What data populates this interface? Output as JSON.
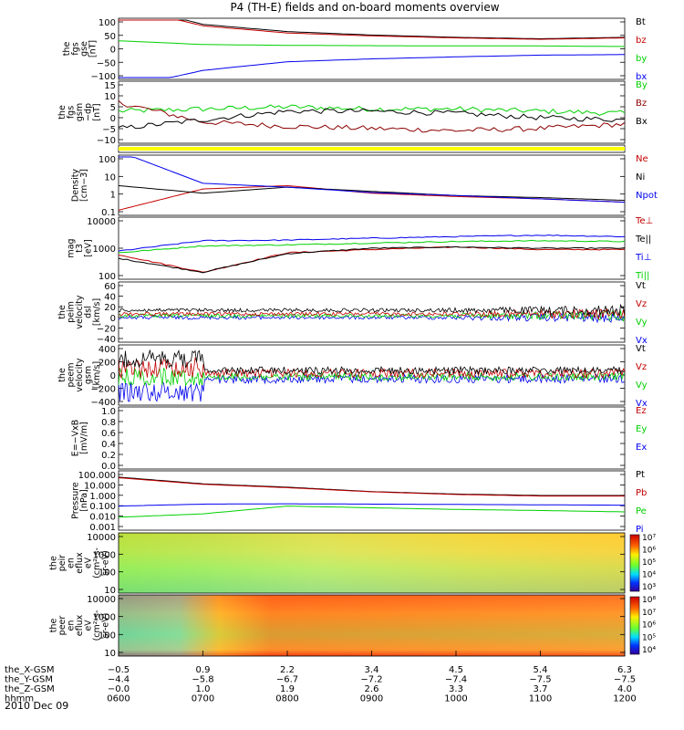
{
  "title": "P4 (TH-E) fields and on-board moments overview",
  "colors": {
    "black": "#000000",
    "red": "#c40000",
    "darkred": "#8b0000",
    "green": "#00d000",
    "blue": "#0000ee",
    "yellow": "#ffff00"
  },
  "panels": [
    {
      "id": "fgs-gse",
      "ylabel": [
        "the",
        "fgs",
        "gse",
        "[nT]"
      ],
      "ticks": [
        "100",
        "50",
        "0",
        "−50",
        "−100"
      ],
      "legend": [
        {
          "text": "Bt",
          "color": "black"
        },
        {
          "text": "bz",
          "color": "red"
        },
        {
          "text": "by",
          "color": "green"
        },
        {
          "text": "bx",
          "color": "blue"
        }
      ]
    },
    {
      "id": "fgs-gsm",
      "ylabel": [
        "the",
        "fgs",
        "gsm",
        "−dp",
        "[nT]"
      ],
      "ticks": [
        "15",
        "10",
        "5",
        "0",
        "−5",
        "−10"
      ],
      "legend": [
        {
          "text": "By",
          "color": "green"
        },
        {
          "text": "Bz",
          "color": "darkred"
        },
        {
          "text": "Bx",
          "color": "black"
        }
      ]
    },
    {
      "id": "flag",
      "ylabel": [],
      "ticks": [],
      "legend": []
    },
    {
      "id": "density",
      "ylabel": [
        "Density",
        "[cm−3]"
      ],
      "ticks": [
        "100",
        "10",
        "1",
        "0.1"
      ],
      "legend": [
        {
          "text": "Ne",
          "color": "red"
        },
        {
          "text": "Ni",
          "color": "black"
        },
        {
          "text": "Npot",
          "color": "blue"
        }
      ]
    },
    {
      "id": "temp",
      "ylabel": [
        "mag",
        "t3",
        "[eV]"
      ],
      "ticks": [
        "10000",
        "1000",
        "100"
      ],
      "legend": [
        {
          "text": "Te⊥",
          "color": "red"
        },
        {
          "text": "Te||",
          "color": "black"
        },
        {
          "text": "Ti⊥",
          "color": "blue"
        },
        {
          "text": "Ti||",
          "color": "green"
        }
      ]
    },
    {
      "id": "peim-vel",
      "ylabel": [
        "the",
        "peim",
        "velocity",
        "dsl",
        "[km/s]"
      ],
      "ticks": [
        "60",
        "40",
        "20",
        "0",
        "−20",
        "−40"
      ],
      "legend": [
        {
          "text": "Vt",
          "color": "black"
        },
        {
          "text": "Vz",
          "color": "red"
        },
        {
          "text": "Vy",
          "color": "green"
        },
        {
          "text": "Vx",
          "color": "blue"
        }
      ]
    },
    {
      "id": "peem-vel",
      "ylabel": [
        "the",
        "peem",
        "velocity",
        "gsm",
        "[km/s]"
      ],
      "ticks": [
        "400",
        "200",
        "0",
        "−200",
        "−400"
      ],
      "legend": [
        {
          "text": "Vt",
          "color": "black"
        },
        {
          "text": "Vz",
          "color": "red"
        },
        {
          "text": "Vy",
          "color": "green"
        },
        {
          "text": "Vx",
          "color": "blue"
        }
      ]
    },
    {
      "id": "efield",
      "ylabel": [
        "E=−VxB",
        "[mV/m]"
      ],
      "ticks": [
        "1.0",
        "0.8",
        "0.6",
        "0.4",
        "0.2",
        "0.0"
      ],
      "legend": [
        {
          "text": "Ez",
          "color": "red"
        },
        {
          "text": "Ey",
          "color": "green"
        },
        {
          "text": "Ex",
          "color": "blue"
        }
      ]
    },
    {
      "id": "pressure",
      "ylabel": [
        "Pressure",
        "[nPa]"
      ],
      "ticks": [
        "100.000",
        "10.000",
        "1.000",
        "0.100",
        "0.010",
        "0.001"
      ],
      "legend": [
        {
          "text": "Pt",
          "color": "black"
        },
        {
          "text": "Pb",
          "color": "red"
        },
        {
          "text": "Pe",
          "color": "green"
        },
        {
          "text": "Pi",
          "color": "blue"
        }
      ]
    },
    {
      "id": "peir-spec",
      "ylabel": [
        "the",
        "peir",
        "en",
        "eflux",
        "eV",
        "(cm²-s-",
        "sr-eV)"
      ],
      "ticks": [
        "10000",
        "1000",
        "100",
        "10"
      ],
      "cbticks": [
        "10⁷",
        "10⁶",
        "10⁵",
        "10⁴",
        "10³"
      ],
      "legend": []
    },
    {
      "id": "peer-spec",
      "ylabel": [
        "the",
        "peer",
        "en",
        "eflux",
        "eV",
        "(cm²-s-",
        "sr-eV)"
      ],
      "ticks": [
        "10000",
        "1000",
        "100",
        "10"
      ],
      "cbticks": [
        "10⁸",
        "10⁷",
        "10⁶",
        "10⁵",
        "10⁴"
      ],
      "legend": []
    }
  ],
  "xaxis": {
    "rows": [
      {
        "label": "the_X-GSM",
        "values": [
          "−0.5",
          "0.9",
          "2.2",
          "3.4",
          "4.5",
          "5.4",
          "6.3"
        ]
      },
      {
        "label": "the_Y-GSM",
        "values": [
          "−4.4",
          "−5.8",
          "−6.7",
          "−7.2",
          "−7.4",
          "−7.5",
          "−7.5"
        ]
      },
      {
        "label": "the_Z-GSM",
        "values": [
          "−0.0",
          "1.0",
          "1.9",
          "2.6",
          "3.3",
          "3.7",
          "4.0"
        ]
      },
      {
        "label": "hhmm",
        "values": [
          "0600",
          "0700",
          "0800",
          "0900",
          "1000",
          "1100",
          "1200"
        ]
      }
    ],
    "date": "2010 Dec 09"
  },
  "chart_data": {
    "type": "line",
    "title": "P4 (TH-E) fields and on-board moments overview",
    "x": [
      "0600",
      "0700",
      "0800",
      "0900",
      "1000",
      "1100",
      "1200"
    ],
    "series": [
      {
        "name": "Bt",
        "panel": "fgs-gse",
        "values": [
          160,
          85,
          60,
          48,
          40,
          35,
          40
        ]
      },
      {
        "name": "bz",
        "panel": "fgs-gse",
        "values": [
          150,
          80,
          55,
          45,
          38,
          33,
          38
        ]
      },
      {
        "name": "by",
        "panel": "fgs-gse",
        "values": [
          28,
          15,
          12,
          11,
          10,
          10,
          8
        ]
      },
      {
        "name": "bx",
        "panel": "fgs-gse",
        "values": [
          -140,
          -75,
          -45,
          -35,
          -28,
          -22,
          -20
        ]
      },
      {
        "name": "By",
        "panel": "fgs-gsm",
        "values": [
          2,
          3,
          4,
          3,
          3,
          2,
          1
        ]
      },
      {
        "name": "Bz",
        "panel": "fgs-gsm",
        "values": [
          6,
          -3,
          -5,
          -6,
          -7,
          -6,
          -4
        ]
      },
      {
        "name": "Bx",
        "panel": "fgs-gsm",
        "values": [
          -6,
          -2,
          2,
          2,
          1,
          -1,
          -2
        ]
      },
      {
        "name": "Ne",
        "panel": "density",
        "values": [
          0.15,
          2,
          3,
          1.2,
          0.8,
          0.6,
          0.4
        ]
      },
      {
        "name": "Ni",
        "panel": "density",
        "values": [
          3,
          1.2,
          2.5,
          1.5,
          0.9,
          0.7,
          0.5
        ]
      },
      {
        "name": "Npot",
        "panel": "density",
        "values": [
          200,
          4,
          2.5,
          1.3,
          0.9,
          0.6,
          0.4
        ]
      },
      {
        "name": "Te⊥",
        "panel": "temp",
        "values": [
          600,
          150,
          700,
          900,
          1100,
          900,
          900
        ]
      },
      {
        "name": "Te||",
        "panel": "temp",
        "values": [
          450,
          150,
          650,
          1000,
          1100,
          1000,
          1000
        ]
      },
      {
        "name": "Ti⊥",
        "panel": "temp",
        "values": [
          800,
          1800,
          1900,
          2200,
          2500,
          2800,
          2500
        ]
      },
      {
        "name": "Ti||",
        "panel": "temp",
        "values": [
          700,
          1200,
          1300,
          1500,
          1700,
          1800,
          1700
        ]
      },
      {
        "name": "Pt",
        "panel": "pressure",
        "values": [
          40,
          10,
          5,
          2,
          1.2,
          0.9,
          0.9
        ]
      },
      {
        "name": "Pb",
        "panel": "pressure",
        "values": [
          35,
          9,
          4.5,
          1.9,
          1.1,
          0.8,
          0.8
        ]
      },
      {
        "name": "Pe",
        "panel": "pressure",
        "values": [
          0.01,
          0.02,
          0.1,
          0.07,
          0.05,
          0.04,
          0.03
        ]
      },
      {
        "name": "Pi",
        "panel": "pressure",
        "values": [
          0.1,
          0.15,
          0.16,
          0.15,
          0.14,
          0.13,
          0.12
        ]
      }
    ]
  }
}
